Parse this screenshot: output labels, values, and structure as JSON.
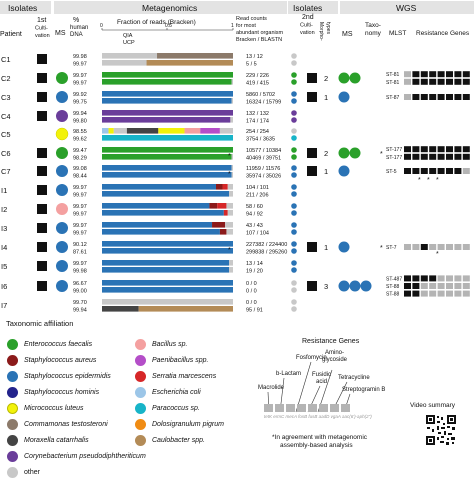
{
  "headers": {
    "isolates_left": "Isolates",
    "metagenomics": "Metagenomics",
    "isolates_right": "Isolates",
    "wgs": "WGS",
    "patient": "Patient",
    "first_cultivation": [
      "1st",
      "Culti-",
      "vation"
    ],
    "ms": "MS",
    "pct_human_dna": [
      "%",
      "human",
      "DNA"
    ],
    "fraction_title": "Fraction of reads (Bracken)",
    "read_counts": [
      "Read counts",
      "for most",
      "abundant organism",
      "Bracken / BLASTN"
    ],
    "second_cultivation": [
      "2nd",
      "Culti-",
      "vation"
    ],
    "morphotypes": [
      "Morpho-",
      "types"
    ],
    "ms_right": "MS",
    "taxonomy": [
      "Taxo-",
      "nomy"
    ],
    "mlst": "MLST",
    "resistance_genes": "Resistance Genes",
    "axis_ticks": [
      "0",
      "0.5",
      "1"
    ],
    "qia": "QIA",
    "ucp": "UCP"
  },
  "colors": {
    "efaecalis": "#2aa02a",
    "saureus": "#8b1a1a",
    "sepidermidis": "#2a73b5",
    "shominis": "#23238c",
    "mluteus": "#f2f20a",
    "ctestosteroni": "#8c7a6a",
    "mcatarrhalis": "#444444",
    "cpseudodiph": "#6a3d9a",
    "bacillus": "#f4a0a0",
    "paenibacillus": "#b44ec8",
    "smarcescens": "#d62728",
    "ecoli": "#9cc6e8",
    "paracoccus": "#17b4c8",
    "dpigrum": "#f08c14",
    "caulobacter": "#b38b57",
    "other": "#c8c8c8",
    "sq_dark": "#111111",
    "sq_grey": "#b4b4b4"
  },
  "legend": {
    "title": "Taxonomic affiliation",
    "items": [
      {
        "label": "Enterococcus faecalis",
        "color": "#2aa02a",
        "italic": true
      },
      {
        "label": "Staphylococcus aureus",
        "color": "#8b1a1a",
        "italic": true
      },
      {
        "label": "Staphylococcus epidermidis",
        "color": "#2a73b5",
        "italic": true
      },
      {
        "label": "Staphylococcus hominis",
        "color": "#23238c",
        "italic": true
      },
      {
        "label": "Micrococcus luteus",
        "color": "#f2f20a",
        "italic": true
      },
      {
        "label": "Commamonas testosteroni",
        "color": "#8c7a6a",
        "italic": true
      },
      {
        "label": "Moraxella catarrhalis",
        "color": "#444444",
        "italic": true
      },
      {
        "label": "Corynebacterium pseudodiphtheriticum",
        "color": "#6a3d9a",
        "italic": true
      },
      {
        "label": "other",
        "color": "#c8c8c8",
        "italic": false
      },
      {
        "label": "Bacillus sp.",
        "color": "#f4a0a0",
        "italic": true
      },
      {
        "label": "Paenibacillus spp.",
        "color": "#b44ec8",
        "italic": true
      },
      {
        "label": "Serratia marcescens",
        "color": "#d62728",
        "italic": true
      },
      {
        "label": "Escherichia coli",
        "color": "#9cc6e8",
        "italic": true
      },
      {
        "label": "Paracoccus sp.",
        "color": "#17b4c8",
        "italic": true
      },
      {
        "label": "Dolosigranulum pigrum",
        "color": "#f08c14",
        "italic": true
      },
      {
        "label": "Caulobacter spp.",
        "color": "#b38b57",
        "italic": true
      }
    ]
  },
  "resistance_legend": {
    "title": "Resistance Genes",
    "labels": [
      "Aminoglycoside",
      "Fosfomycin",
      "b-Lactam",
      "Fusidic acid",
      "Tetracycline",
      "Macrolide",
      "Streptogramin B"
    ],
    "genes": "tetK  ermC  mecA  fosB  fusB  aadD  vgaA  aac(6')-aph(2'')"
  },
  "footnote": [
    "*In agreement with metagenomic",
    "assembly-based analysis"
  ],
  "video": "Video summary",
  "patients": [
    {
      "id": "C1",
      "first": "dark",
      "ms": [],
      "pct": [
        "99.98",
        "99.97"
      ],
      "bars": [
        [
          [
            "#c8c8c8",
            0.42
          ],
          [
            "#8c7a6a",
            0.58
          ]
        ],
        [
          [
            "#c8c8c8",
            0.34
          ],
          [
            "#b38b57",
            0.66
          ]
        ]
      ],
      "counts": [
        "13 / 12",
        "5 / 5"
      ],
      "dots": [
        "#c8c8c8",
        "#c8c8c8"
      ],
      "second": "",
      "morph": "",
      "ms2": [],
      "star": "",
      "mlst": [],
      "res": []
    },
    {
      "id": "C2",
      "first": "dark",
      "ms": [
        "#2aa02a"
      ],
      "pct": [
        "99.97",
        "99.97"
      ],
      "bars": [
        [
          [
            "#2aa02a",
            1.0
          ]
        ],
        [
          [
            "#2aa02a",
            0.99
          ],
          [
            "#c8c8c8",
            0.01
          ]
        ]
      ],
      "counts": [
        "229 / 226",
        "419 / 415"
      ],
      "dots": [
        "#2aa02a",
        "#2aa02a"
      ],
      "second": "dark",
      "morph": "2",
      "ms2": [
        "#2aa02a",
        "#2aa02a"
      ],
      "star": "",
      "mlst": [
        "ST-81",
        "ST-81"
      ],
      "res": [
        [
          0,
          1,
          1,
          1,
          1,
          1,
          1,
          1
        ],
        [
          0,
          1,
          1,
          1,
          1,
          1,
          1,
          1
        ]
      ]
    },
    {
      "id": "C3",
      "first": "dark",
      "ms": [
        "#2a73b5"
      ],
      "pct": [
        "99.92",
        "99.75"
      ],
      "bars": [
        [
          [
            "#2a73b5",
            1.0
          ]
        ],
        [
          [
            "#2a73b5",
            0.99
          ],
          [
            "#c8c8c8",
            0.01
          ]
        ]
      ],
      "counts": [
        "5860 / 5702",
        "16324 / 15799"
      ],
      "dots": [
        "#2a73b5",
        "#2a73b5"
      ],
      "second": "dark",
      "morph": "1",
      "ms2": [
        "#2a73b5"
      ],
      "star": "",
      "mlst": [
        "ST-87"
      ],
      "res": [
        [
          0,
          1,
          1,
          1,
          1,
          1,
          1,
          1
        ]
      ]
    },
    {
      "id": "C4",
      "first": "dark",
      "ms": [
        "#6a3d9a"
      ],
      "pct": [
        "99.94",
        "99.80"
      ],
      "bars": [
        [
          [
            "#6a3d9a",
            1.0
          ]
        ],
        [
          [
            "#6a3d9a",
            0.98
          ],
          [
            "#c8c8c8",
            0.02
          ]
        ]
      ],
      "counts": [
        "132 / 132",
        "174 / 174"
      ],
      "dots": [
        "#6a3d9a",
        "#6a3d9a"
      ],
      "second": "",
      "morph": "",
      "ms2": [],
      "star": "",
      "mlst": [],
      "res": []
    },
    {
      "id": "C5",
      "first": "",
      "ms": [
        "#f2f20a"
      ],
      "pct": [
        "98.55",
        "99.62"
      ],
      "bars": [
        [
          [
            "#9cc6e8",
            0.05
          ],
          [
            "#f2f20a",
            0.04
          ],
          [
            "#c8c8c8",
            0.1
          ],
          [
            "#444444",
            0.24
          ],
          [
            "#f2f20a",
            0.2
          ],
          [
            "#f4a0a0",
            0.12
          ],
          [
            "#b44ec8",
            0.15
          ],
          [
            "#c8c8c8",
            0.1
          ]
        ],
        [
          [
            "#17b4c8",
            1.0
          ]
        ]
      ],
      "counts": [
        "254 / 254",
        "3754 / 3635"
      ],
      "dots": [
        "#c8c8c8",
        "#17b4c8"
      ],
      "second": "",
      "morph": "",
      "ms2": [],
      "star": "",
      "mlst": [],
      "res": []
    },
    {
      "id": "C6",
      "first": "dark",
      "ms": [
        "#2aa02a"
      ],
      "pct": [
        "99.47",
        "98.29"
      ],
      "bars": [
        [
          [
            "#2aa02a",
            1.0
          ]
        ],
        [
          [
            "#2aa02a",
            0.99
          ],
          [
            "#c8c8c8",
            0.01
          ]
        ]
      ],
      "counts": [
        "10577 / 10384",
        "40469 / 39751"
      ],
      "dots": [
        "#2aa02a",
        "#2aa02a"
      ],
      "second": "dark",
      "morph": "2",
      "ms2": [
        "#2aa02a",
        "#2aa02a"
      ],
      "star": "*",
      "mlst": [
        "ST-177",
        "ST-177"
      ],
      "res": [
        [
          1,
          1,
          1,
          1,
          1,
          1,
          1,
          1
        ],
        [
          1,
          1,
          1,
          1,
          1,
          1,
          1,
          1
        ]
      ]
    },
    {
      "id": "C7",
      "first": "dark",
      "ms": [
        "#2a73b5"
      ],
      "pct": [
        "99.08",
        "98.44"
      ],
      "bars": [
        [
          [
            "#2a73b5",
            0.99
          ],
          [
            "#c8c8c8",
            0.01
          ]
        ],
        [
          [
            "#2a73b5",
            0.99
          ],
          [
            "#c8c8c8",
            0.01
          ]
        ]
      ],
      "counts": [
        "11959 / 11576",
        "35974 / 35026"
      ],
      "dots": [
        "#2a73b5",
        "#2a73b5"
      ],
      "second": "dark",
      "morph": "1",
      "ms2": [
        "#2a73b5"
      ],
      "star": "",
      "mlst": [
        "ST-5"
      ],
      "res": [
        [
          1,
          1,
          1,
          1,
          1,
          1,
          1,
          0
        ]
      ]
    },
    {
      "id": "I1",
      "first": "dark",
      "ms": [
        "#2a73b5"
      ],
      "pct": [
        "99.97",
        "99.97"
      ],
      "bars": [
        [
          [
            "#2a73b5",
            0.87
          ],
          [
            "#8b1a1a",
            0.05
          ],
          [
            "#d62728",
            0.04
          ],
          [
            "#c8c8c8",
            0.04
          ]
        ],
        [
          [
            "#2a73b5",
            0.97
          ],
          [
            "#c8c8c8",
            0.03
          ]
        ]
      ],
      "counts": [
        "104 / 101",
        "211 / 206"
      ],
      "dots": [
        "#2a73b5",
        "#2a73b5"
      ],
      "second": "",
      "morph": "",
      "ms2": [],
      "star": "",
      "mlst": [],
      "res": []
    },
    {
      "id": "I2",
      "first": "dark",
      "ms": [
        "#f4a0a0"
      ],
      "pct": [
        "99.97",
        "99.97"
      ],
      "bars": [
        [
          [
            "#2a73b5",
            0.82
          ],
          [
            "#8b1a1a",
            0.06
          ],
          [
            "#d62728",
            0.07
          ],
          [
            "#c8c8c8",
            0.05
          ]
        ],
        [
          [
            "#2a73b5",
            0.93
          ],
          [
            "#d62728",
            0.03
          ],
          [
            "#c8c8c8",
            0.04
          ]
        ]
      ],
      "counts": [
        "58 / 60",
        "94 / 92"
      ],
      "dots": [
        "#2a73b5",
        "#2a73b5"
      ],
      "second": "",
      "morph": "",
      "ms2": [],
      "star": "",
      "mlst": [],
      "res": []
    },
    {
      "id": "I3",
      "first": "dark",
      "ms": [
        "#2a73b5"
      ],
      "pct": [
        "99.97",
        "99.97"
      ],
      "bars": [
        [
          [
            "#2a73b5",
            0.84
          ],
          [
            "#8b1a1a",
            0.1
          ],
          [
            "#c8c8c8",
            0.06
          ]
        ],
        [
          [
            "#2a73b5",
            0.9
          ],
          [
            "#8b1a1a",
            0.05
          ],
          [
            "#c8c8c8",
            0.05
          ]
        ]
      ],
      "counts": [
        "43 / 43",
        "107 / 104"
      ],
      "dots": [
        "#2a73b5",
        "#2a73b5"
      ],
      "second": "",
      "morph": "",
      "ms2": [],
      "star": "",
      "mlst": [],
      "res": []
    },
    {
      "id": "I4",
      "first": "dark",
      "ms": [
        "#2a73b5"
      ],
      "pct": [
        "90.12",
        "87.61"
      ],
      "bars": [
        [
          [
            "#2a73b5",
            1.0
          ]
        ],
        [
          [
            "#2a73b5",
            1.0
          ]
        ]
      ],
      "counts": [
        "227382 / 224400",
        "299838 / 295260"
      ],
      "dots": [
        "#2a73b5",
        "#2a73b5"
      ],
      "second": "dark",
      "morph": "1",
      "ms2": [
        "#2a73b5"
      ],
      "star": "*",
      "mlst": [
        "ST-7"
      ],
      "res": [
        [
          0,
          0,
          1,
          0,
          0,
          0,
          0,
          0
        ]
      ]
    },
    {
      "id": "I5",
      "first": "dark",
      "ms": [
        "#2a73b5"
      ],
      "pct": [
        "99.97",
        "99.98"
      ],
      "bars": [
        [
          [
            "#2a73b5",
            0.97
          ],
          [
            "#c8c8c8",
            0.03
          ]
        ],
        [
          [
            "#2a73b5",
            0.97
          ],
          [
            "#c8c8c8",
            0.03
          ]
        ]
      ],
      "counts": [
        "13 / 14",
        "19 / 20"
      ],
      "dots": [
        "#2a73b5",
        "#2a73b5"
      ],
      "second": "",
      "morph": "",
      "ms2": [],
      "star": "",
      "mlst": [],
      "res": []
    },
    {
      "id": "I6",
      "first": "dark",
      "ms": [
        "#2a73b5"
      ],
      "pct": [
        "96.67",
        "99.00"
      ],
      "bars": [
        [
          [
            "#2a73b5",
            1.0
          ]
        ],
        [
          [
            "#2a73b5",
            1.0
          ]
        ]
      ],
      "counts": [
        "0 / 0",
        "0 / 0"
      ],
      "dots": [
        "#c8c8c8",
        "#c8c8c8"
      ],
      "second": "dark",
      "morph": "3",
      "ms2": [
        "#2a73b5",
        "#2a73b5",
        "#2a73b5"
      ],
      "star": "",
      "mlst": [
        "ST-487",
        "ST-88",
        "ST-88"
      ],
      "res": [
        [
          1,
          1,
          1,
          1,
          0,
          0,
          0,
          0
        ],
        [
          1,
          1,
          0,
          0,
          0,
          0,
          0,
          0
        ],
        [
          1,
          1,
          0,
          0,
          0,
          0,
          0,
          0
        ]
      ]
    },
    {
      "id": "I7",
      "first": "",
      "ms": [],
      "pct": [
        "99.70",
        "99.94"
      ],
      "bars": [
        [
          [
            "#c8c8c8",
            1.0
          ]
        ],
        [
          [
            "#444444",
            0.28
          ],
          [
            "#b38b57",
            0.72
          ]
        ]
      ],
      "counts": [
        "0 / 0",
        "95 / 91"
      ],
      "dots": [
        "#c8c8c8",
        "#c8c8c8"
      ],
      "second": "",
      "morph": "",
      "ms2": [],
      "star": "",
      "mlst": [],
      "res": []
    }
  ]
}
